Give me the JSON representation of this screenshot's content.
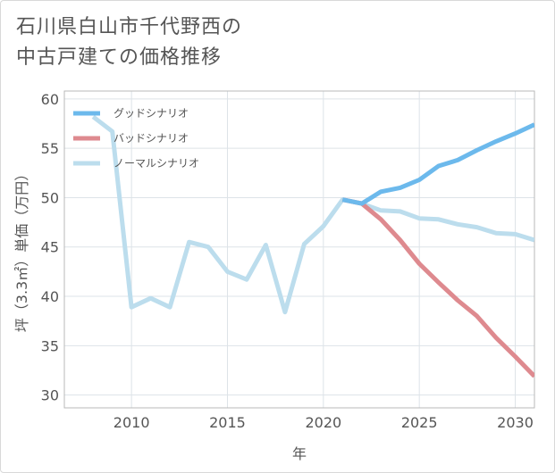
{
  "title_lines": [
    "石川県白山市千代野西の",
    "中古戸建ての価格推移"
  ],
  "chart_data": {
    "type": "line",
    "title": "石川県白山市千代野西の中古戸建ての価格推移",
    "xlabel": "年",
    "ylabel": "坪（3.3㎡）単価（万円）",
    "xlim": [
      2006.5,
      2031
    ],
    "ylim": [
      28.7,
      60.8
    ],
    "xticks": [
      2010,
      2015,
      2020,
      2025,
      2030
    ],
    "yticks": [
      30,
      35,
      40,
      45,
      50,
      55,
      60
    ],
    "legend_position": "top-left",
    "series": [
      {
        "name": "グッドシナリオ",
        "color": "#6cb9ec",
        "points": [
          [
            2021,
            49.8
          ],
          [
            2022,
            49.4
          ],
          [
            2023,
            50.6
          ],
          [
            2024,
            51.0
          ],
          [
            2025,
            51.8
          ],
          [
            2026,
            53.2
          ],
          [
            2027,
            53.8
          ],
          [
            2028,
            54.8
          ],
          [
            2029,
            55.7
          ],
          [
            2030,
            56.5
          ],
          [
            2031,
            57.4
          ]
        ]
      },
      {
        "name": "バッドシナリオ",
        "color": "#de8a8f",
        "points": [
          [
            2021,
            49.8
          ],
          [
            2022,
            49.4
          ],
          [
            2023,
            47.8
          ],
          [
            2024,
            45.7
          ],
          [
            2025,
            43.3
          ],
          [
            2026,
            41.4
          ],
          [
            2027,
            39.6
          ],
          [
            2028,
            38.0
          ],
          [
            2029,
            35.8
          ],
          [
            2030,
            33.9
          ],
          [
            2031,
            31.9
          ]
        ]
      },
      {
        "name": "ノーマルシナリオ",
        "color": "#bcdded",
        "points": [
          [
            2008,
            58.2
          ],
          [
            2009,
            56.7
          ],
          [
            2010,
            38.9
          ],
          [
            2011,
            39.8
          ],
          [
            2012,
            38.9
          ],
          [
            2013,
            45.5
          ],
          [
            2014,
            45.0
          ],
          [
            2015,
            42.5
          ],
          [
            2016,
            41.7
          ],
          [
            2017,
            45.2
          ],
          [
            2018,
            38.4
          ],
          [
            2019,
            45.3
          ],
          [
            2020,
            47.1
          ],
          [
            2021,
            49.8
          ],
          [
            2022,
            49.4
          ],
          [
            2023,
            48.7
          ],
          [
            2024,
            48.6
          ],
          [
            2025,
            47.9
          ],
          [
            2026,
            47.8
          ],
          [
            2027,
            47.3
          ],
          [
            2028,
            47.0
          ],
          [
            2029,
            46.4
          ],
          [
            2030,
            46.3
          ],
          [
            2031,
            45.7
          ]
        ]
      }
    ]
  }
}
